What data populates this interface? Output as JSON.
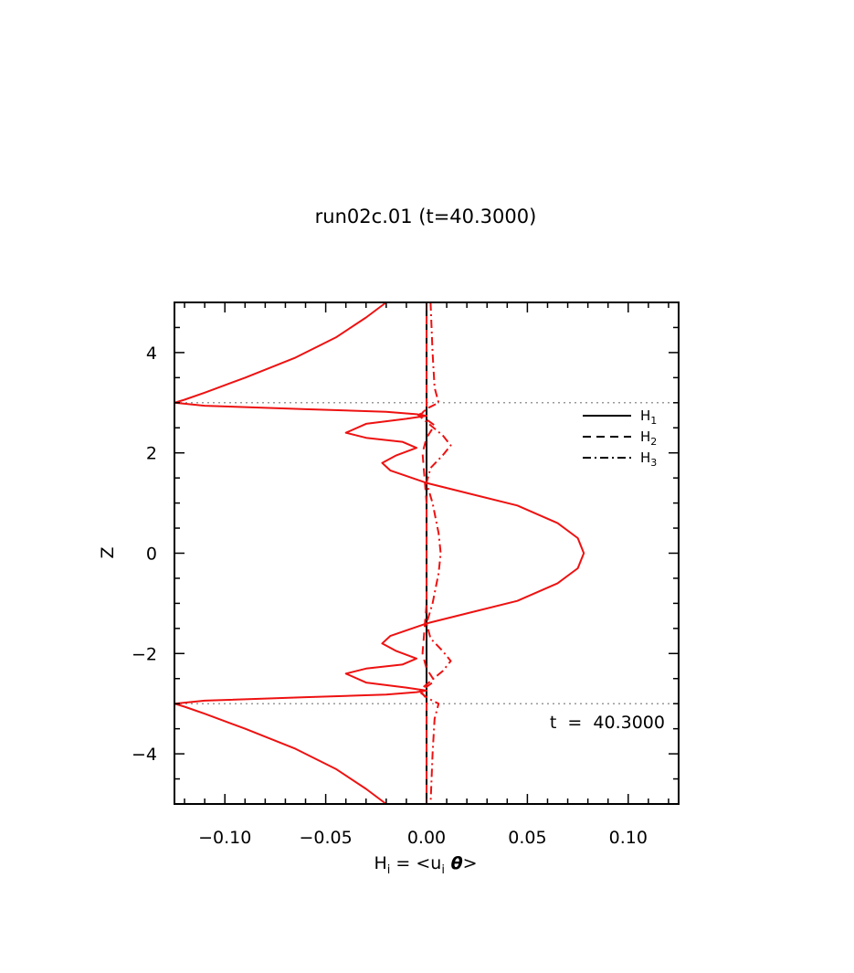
{
  "chart_data": {
    "type": "line",
    "title": "run02c.01  (t=40.3000)",
    "xlabel": {
      "main": "H",
      "sub": "i",
      "eq": " = <u",
      "sub2": "i",
      "theta": " θ",
      "end": ">"
    },
    "ylabel": "Z",
    "xlim": [
      -0.125,
      0.125
    ],
    "ylim": [
      -5,
      5
    ],
    "x_ticks": [
      -0.1,
      -0.05,
      0.0,
      0.05,
      0.1
    ],
    "x_tick_labels": [
      "−0.10",
      "−0.05",
      "0.00",
      "0.05",
      "0.10"
    ],
    "y_ticks": [
      -4,
      -2,
      0,
      2,
      4
    ],
    "y_tick_labels": [
      "−4",
      "−2",
      "0",
      "2",
      "4"
    ],
    "grid": false,
    "reference_lines": [
      {
        "z": 3
      },
      {
        "z": -3
      }
    ],
    "annotation": "t  =  40.3000",
    "legend_position": "top-right",
    "legend": [
      {
        "main": "H",
        "sub": "1",
        "style": "solid"
      },
      {
        "main": "H",
        "sub": "2",
        "style": "dashed"
      },
      {
        "main": "H",
        "sub": "3",
        "style": "dashdot"
      }
    ],
    "series": [
      {
        "style": "solid",
        "color": "#ee1111",
        "points": [
          [
            -0.02,
            5.0
          ],
          [
            -0.03,
            4.7
          ],
          [
            -0.045,
            4.3
          ],
          [
            -0.065,
            3.9
          ],
          [
            -0.09,
            3.5
          ],
          [
            -0.11,
            3.2
          ],
          [
            -0.12,
            3.06
          ],
          [
            -0.125,
            3.0
          ],
          [
            -0.11,
            2.94
          ],
          [
            -0.06,
            2.87
          ],
          [
            -0.02,
            2.82
          ],
          [
            -0.005,
            2.77
          ],
          [
            0.0,
            2.74
          ],
          [
            -0.01,
            2.68
          ],
          [
            -0.03,
            2.58
          ],
          [
            -0.04,
            2.4
          ],
          [
            -0.03,
            2.3
          ],
          [
            -0.012,
            2.22
          ],
          [
            -0.005,
            2.1
          ],
          [
            -0.015,
            1.95
          ],
          [
            -0.022,
            1.8
          ],
          [
            -0.018,
            1.65
          ],
          [
            0.0,
            1.4
          ],
          [
            0.02,
            1.2
          ],
          [
            0.045,
            0.95
          ],
          [
            0.065,
            0.6
          ],
          [
            0.075,
            0.3
          ],
          [
            0.078,
            0.0
          ],
          [
            0.075,
            -0.3
          ],
          [
            0.065,
            -0.6
          ],
          [
            0.045,
            -0.95
          ],
          [
            0.02,
            -1.2
          ],
          [
            0.0,
            -1.4
          ],
          [
            -0.018,
            -1.65
          ],
          [
            -0.022,
            -1.8
          ],
          [
            -0.015,
            -1.95
          ],
          [
            -0.005,
            -2.1
          ],
          [
            -0.012,
            -2.22
          ],
          [
            -0.03,
            -2.3
          ],
          [
            -0.04,
            -2.4
          ],
          [
            -0.03,
            -2.58
          ],
          [
            -0.01,
            -2.68
          ],
          [
            0.0,
            -2.74
          ],
          [
            -0.005,
            -2.77
          ],
          [
            -0.02,
            -2.82
          ],
          [
            -0.06,
            -2.87
          ],
          [
            -0.11,
            -2.94
          ],
          [
            -0.125,
            -3.0
          ],
          [
            -0.12,
            -3.06
          ],
          [
            -0.11,
            -3.2
          ],
          [
            -0.09,
            -3.5
          ],
          [
            -0.065,
            -3.9
          ],
          [
            -0.045,
            -4.3
          ],
          [
            -0.03,
            -4.7
          ],
          [
            -0.02,
            -5.0
          ]
        ]
      },
      {
        "style": "dashed",
        "color": "#ee1111",
        "points": [
          [
            0.0,
            5.0
          ],
          [
            0.0,
            3.05
          ],
          [
            0.0,
            2.9
          ],
          [
            -0.003,
            2.75
          ],
          [
            0.004,
            2.55
          ],
          [
            0.0,
            2.3
          ],
          [
            -0.002,
            2.0
          ],
          [
            0.0,
            1.0
          ],
          [
            0.0,
            -1.0
          ],
          [
            -0.002,
            -2.0
          ],
          [
            0.0,
            -2.3
          ],
          [
            0.004,
            -2.55
          ],
          [
            -0.003,
            -2.75
          ],
          [
            0.0,
            -2.9
          ],
          [
            0.0,
            -3.05
          ],
          [
            0.0,
            -5.0
          ]
        ]
      },
      {
        "style": "dashdot",
        "color": "#ee1111",
        "points": [
          [
            0.002,
            5.0
          ],
          [
            0.003,
            4.0
          ],
          [
            0.004,
            3.3
          ],
          [
            0.006,
            3.0
          ],
          [
            0.001,
            2.9
          ],
          [
            -0.004,
            2.75
          ],
          [
            0.002,
            2.55
          ],
          [
            0.008,
            2.35
          ],
          [
            0.012,
            2.15
          ],
          [
            0.008,
            1.95
          ],
          [
            0.002,
            1.7
          ],
          [
            0.0,
            1.4
          ],
          [
            0.003,
            1.0
          ],
          [
            0.006,
            0.4
          ],
          [
            0.007,
            0.0
          ],
          [
            0.006,
            -0.4
          ],
          [
            0.003,
            -1.0
          ],
          [
            0.0,
            -1.4
          ],
          [
            0.002,
            -1.7
          ],
          [
            0.008,
            -1.95
          ],
          [
            0.012,
            -2.15
          ],
          [
            0.008,
            -2.35
          ],
          [
            0.002,
            -2.55
          ],
          [
            -0.004,
            -2.75
          ],
          [
            0.001,
            -2.9
          ],
          [
            0.006,
            -3.0
          ],
          [
            0.004,
            -3.3
          ],
          [
            0.003,
            -4.0
          ],
          [
            0.002,
            -5.0
          ]
        ]
      }
    ]
  }
}
